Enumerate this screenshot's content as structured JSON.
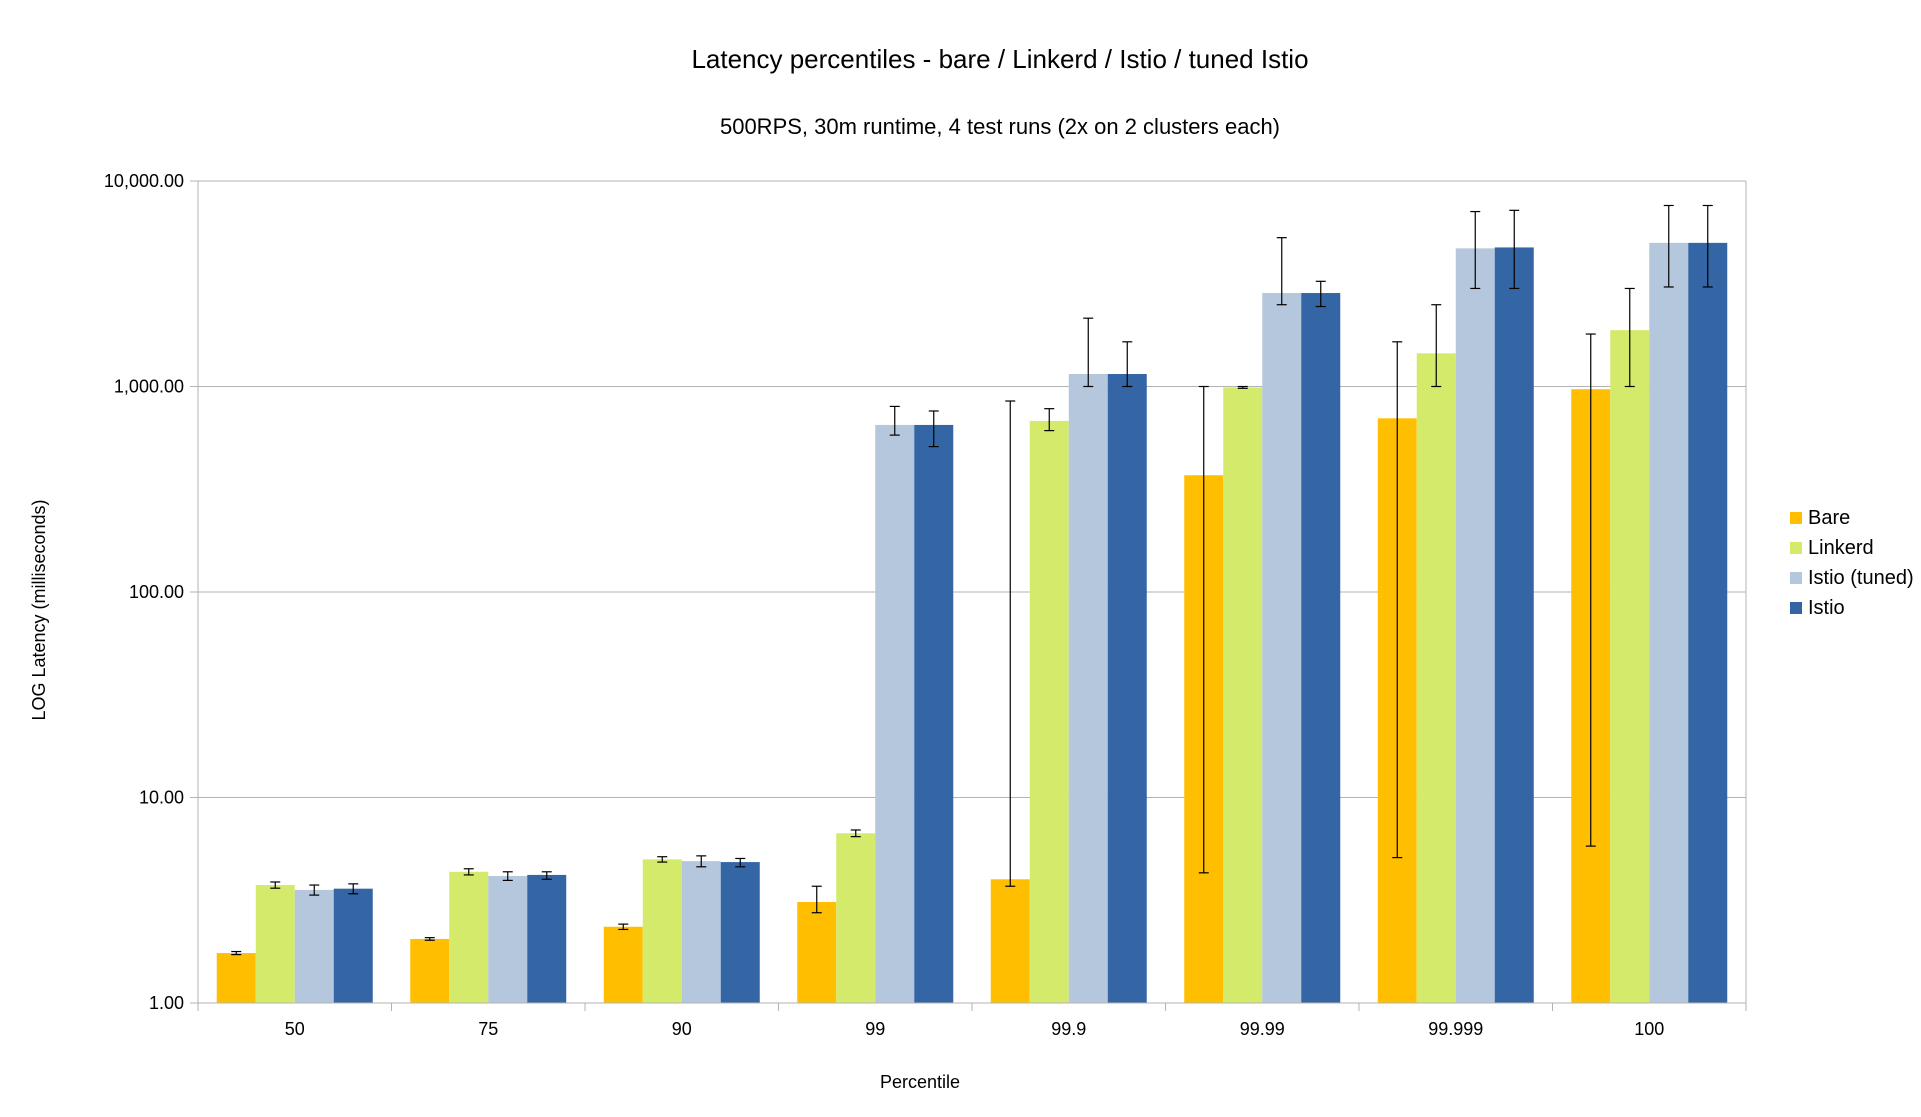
{
  "chart_data": {
    "type": "bar",
    "title": "Latency percentiles - bare / Linkerd / Istio / tuned Istio",
    "subtitle": "500RPS, 30m runtime, 4 test runs (2x on 2 clusters each)",
    "xlabel": "Percentile",
    "ylabel": "LOG Latency (milliseconds)",
    "yscale": "log",
    "ylim": [
      1,
      10000
    ],
    "yticks": [
      1,
      10,
      100,
      1000,
      10000
    ],
    "ytick_labels": [
      "1.00",
      "10.00",
      "100.00",
      "1,000.00",
      "10,000.00"
    ],
    "grid": "horizontal",
    "legend_position": "right",
    "categories": [
      "50",
      "75",
      "90",
      "99",
      "99.9",
      "99.99",
      "99.999",
      "100"
    ],
    "series": [
      {
        "name": "Bare",
        "color": "#ffbf00",
        "values": [
          1.75,
          2.05,
          2.35,
          3.1,
          4.0,
          370,
          700,
          970
        ],
        "error_low": [
          1.72,
          2.02,
          2.28,
          2.75,
          3.7,
          4.3,
          5.1,
          5.8
        ],
        "error_high": [
          1.78,
          2.08,
          2.42,
          3.7,
          850,
          1000,
          1650,
          1800
        ]
      },
      {
        "name": "Linkerd",
        "color": "#d4ea6b",
        "values": [
          3.75,
          4.35,
          5.0,
          6.7,
          680,
          990,
          1450,
          1880
        ],
        "error_low": [
          3.62,
          4.2,
          4.85,
          6.45,
          610,
          980,
          1000,
          1000
        ],
        "error_high": [
          3.88,
          4.5,
          5.15,
          6.95,
          780,
          1000,
          2500,
          3000
        ]
      },
      {
        "name": "Istio (tuned)",
        "color": "#b4c7dc",
        "values": [
          3.55,
          4.15,
          4.9,
          650,
          1150,
          2850,
          4700,
          5000
        ],
        "error_low": [
          3.35,
          3.95,
          4.6,
          580,
          1000,
          2500,
          3000,
          3050
        ],
        "error_high": [
          3.75,
          4.35,
          5.2,
          800,
          2150,
          5300,
          7100,
          7600
        ]
      },
      {
        "name": "Istio",
        "color": "#3465a4",
        "values": [
          3.6,
          4.2,
          4.85,
          650,
          1150,
          2850,
          4750,
          5000
        ],
        "error_low": [
          3.4,
          4.0,
          4.6,
          510,
          1000,
          2450,
          3000,
          3050
        ],
        "error_high": [
          3.8,
          4.35,
          5.05,
          760,
          1650,
          3250,
          7200,
          7600
        ]
      }
    ]
  },
  "colors": {
    "grid": "#b3b3b3",
    "axis": "#b3b3b3",
    "error_bar": "#000000"
  }
}
